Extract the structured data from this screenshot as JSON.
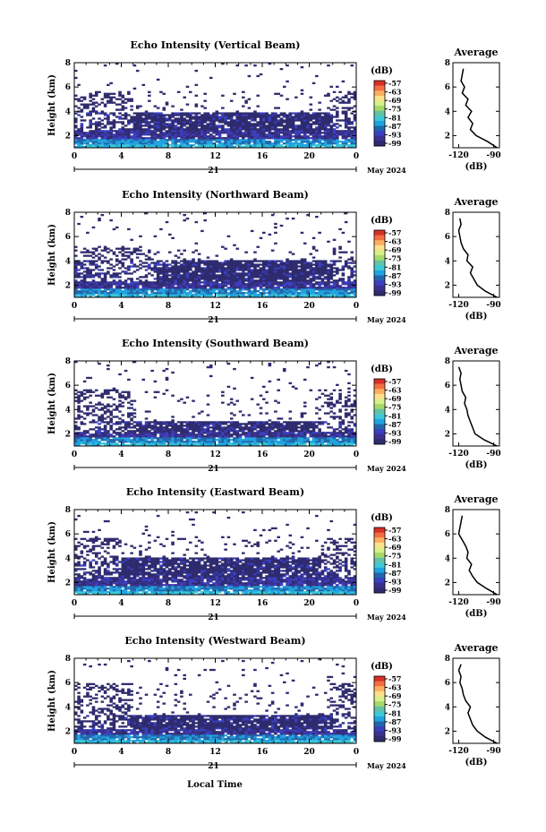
{
  "figure": {
    "xlabel": "Local Time",
    "date_day": "21",
    "date_month": "May 2024",
    "colorbar_unit": "(dB)",
    "colorbar_ticks": [
      "-57",
      "-63",
      "-69",
      "-75",
      "-81",
      "-87",
      "-93",
      "-99"
    ],
    "colorbar_colors": [
      "#d73027",
      "#f46d43",
      "#fdae61",
      "#fee08b",
      "#d9ef8b",
      "#a6d96a",
      "#66c2a5",
      "#3ec9d6",
      "#1fa3e0",
      "#2166ac",
      "#3a3fbf",
      "#3b2f8f",
      "#2e2b6e"
    ],
    "average_title": "Average",
    "average_xlabel": "(dB)"
  },
  "chart_data": [
    {
      "type": "heatmap",
      "title": "Echo Intensity (Vertical Beam)",
      "ylabel": "Height (km)",
      "x_ticks": [
        "0",
        "4",
        "8",
        "12",
        "16",
        "20",
        "0"
      ],
      "y_ticks": [
        "2",
        "4",
        "6",
        "8"
      ],
      "xlim": [
        0,
        24
      ],
      "ylim": [
        1,
        8
      ],
      "layers": {
        "dense_top": 2.4,
        "mid_top": 3.9,
        "upper_top": 5.6,
        "mid_start_hr": 5,
        "mid_end_hr": 22
      },
      "average": {
        "x_ticks": [
          "-120",
          "-90"
        ],
        "xlim": [
          -125,
          -85
        ],
        "y_ticks": [
          "2",
          "4",
          "6",
          "8"
        ],
        "profile": [
          [
            -87,
            1.0
          ],
          [
            -95,
            1.5
          ],
          [
            -105,
            2.0
          ],
          [
            -110,
            2.5
          ],
          [
            -108,
            3.0
          ],
          [
            -112,
            3.5
          ],
          [
            -109,
            4.0
          ],
          [
            -114,
            4.5
          ],
          [
            -112,
            5.0
          ],
          [
            -117,
            5.5
          ],
          [
            -115,
            6.0
          ],
          [
            -118,
            6.5
          ],
          [
            -117,
            7.0
          ],
          [
            -116,
            7.5
          ]
        ]
      }
    },
    {
      "type": "heatmap",
      "title": "Echo Intensity (Northward Beam)",
      "ylabel": "Height (km)",
      "x_ticks": [
        "0",
        "4",
        "8",
        "12",
        "16",
        "20",
        "0"
      ],
      "y_ticks": [
        "2",
        "4",
        "6",
        "8"
      ],
      "xlim": [
        0,
        24
      ],
      "ylim": [
        1,
        8
      ],
      "layers": {
        "dense_top": 2.3,
        "mid_top": 4.1,
        "upper_top": 5.2,
        "mid_start_hr": 7,
        "mid_end_hr": 22
      },
      "average": {
        "x_ticks": [
          "-120",
          "-90"
        ],
        "xlim": [
          -125,
          -85
        ],
        "y_ticks": [
          "2",
          "4",
          "6",
          "8"
        ],
        "profile": [
          [
            -87,
            1.0
          ],
          [
            -97,
            1.5
          ],
          [
            -104,
            2.0
          ],
          [
            -107,
            2.5
          ],
          [
            -110,
            3.0
          ],
          [
            -108,
            3.5
          ],
          [
            -113,
            4.0
          ],
          [
            -112,
            4.5
          ],
          [
            -116,
            5.0
          ],
          [
            -118,
            5.5
          ],
          [
            -119,
            6.0
          ],
          [
            -120,
            6.5
          ],
          [
            -118,
            7.0
          ],
          [
            -119,
            7.5
          ]
        ]
      }
    },
    {
      "type": "heatmap",
      "title": "Echo Intensity (Southward Beam)",
      "ylabel": "Height (km)",
      "x_ticks": [
        "0",
        "4",
        "8",
        "12",
        "16",
        "20",
        "0"
      ],
      "y_ticks": [
        "2",
        "4",
        "6",
        "8"
      ],
      "xlim": [
        0,
        24
      ],
      "ylim": [
        1,
        8
      ],
      "layers": {
        "dense_top": 2.1,
        "mid_top": 3.0,
        "upper_top": 5.6,
        "mid_start_hr": 5,
        "mid_end_hr": 21
      },
      "average": {
        "x_ticks": [
          "-120",
          "-90"
        ],
        "xlim": [
          -125,
          -85
        ],
        "y_ticks": [
          "2",
          "4",
          "6",
          "8"
        ],
        "profile": [
          [
            -87,
            1.0
          ],
          [
            -98,
            1.5
          ],
          [
            -106,
            2.0
          ],
          [
            -108,
            2.5
          ],
          [
            -110,
            3.0
          ],
          [
            -112,
            3.5
          ],
          [
            -113,
            4.0
          ],
          [
            -115,
            4.5
          ],
          [
            -114,
            5.0
          ],
          [
            -117,
            5.5
          ],
          [
            -118,
            6.0
          ],
          [
            -119,
            6.5
          ],
          [
            -118,
            7.0
          ],
          [
            -120,
            7.5
          ]
        ]
      }
    },
    {
      "type": "heatmap",
      "title": "Echo Intensity (Eastward Beam)",
      "ylabel": "Height (km)",
      "x_ticks": [
        "0",
        "4",
        "8",
        "12",
        "16",
        "20",
        "0"
      ],
      "y_ticks": [
        "2",
        "4",
        "6",
        "8"
      ],
      "xlim": [
        0,
        24
      ],
      "ylim": [
        1,
        8
      ],
      "layers": {
        "dense_top": 2.4,
        "mid_top": 4.0,
        "upper_top": 5.7,
        "mid_start_hr": 4,
        "mid_end_hr": 21
      },
      "average": {
        "x_ticks": [
          "-120",
          "-90"
        ],
        "xlim": [
          -125,
          -85
        ],
        "y_ticks": [
          "2",
          "4",
          "6",
          "8"
        ],
        "profile": [
          [
            -87,
            1.0
          ],
          [
            -96,
            1.5
          ],
          [
            -104,
            2.0
          ],
          [
            -108,
            2.5
          ],
          [
            -111,
            3.0
          ],
          [
            -109,
            3.5
          ],
          [
            -113,
            4.0
          ],
          [
            -112,
            4.5
          ],
          [
            -114,
            5.0
          ],
          [
            -117,
            5.5
          ],
          [
            -120,
            6.0
          ],
          [
            -119,
            6.5
          ],
          [
            -118,
            7.0
          ],
          [
            -117,
            7.5
          ]
        ]
      }
    },
    {
      "type": "heatmap",
      "title": "Echo Intensity (Westward Beam)",
      "ylabel": "Height (km)",
      "x_ticks": [
        "0",
        "4",
        "8",
        "12",
        "16",
        "20",
        "0"
      ],
      "y_ticks": [
        "2",
        "4",
        "6",
        "8"
      ],
      "xlim": [
        0,
        24
      ],
      "ylim": [
        1,
        8
      ],
      "layers": {
        "dense_top": 2.2,
        "mid_top": 3.3,
        "upper_top": 6.0,
        "mid_start_hr": 5,
        "mid_end_hr": 22
      },
      "average": {
        "x_ticks": [
          "-120",
          "-90"
        ],
        "xlim": [
          -125,
          -85
        ],
        "y_ticks": [
          "2",
          "4",
          "6",
          "8"
        ],
        "profile": [
          [
            -87,
            1.0
          ],
          [
            -97,
            1.5
          ],
          [
            -104,
            2.0
          ],
          [
            -108,
            2.5
          ],
          [
            -110,
            3.0
          ],
          [
            -112,
            3.5
          ],
          [
            -110,
            4.0
          ],
          [
            -114,
            4.5
          ],
          [
            -116,
            5.0
          ],
          [
            -117,
            5.5
          ],
          [
            -119,
            6.0
          ],
          [
            -118,
            6.5
          ],
          [
            -120,
            7.0
          ],
          [
            -118,
            7.5
          ]
        ]
      }
    }
  ]
}
